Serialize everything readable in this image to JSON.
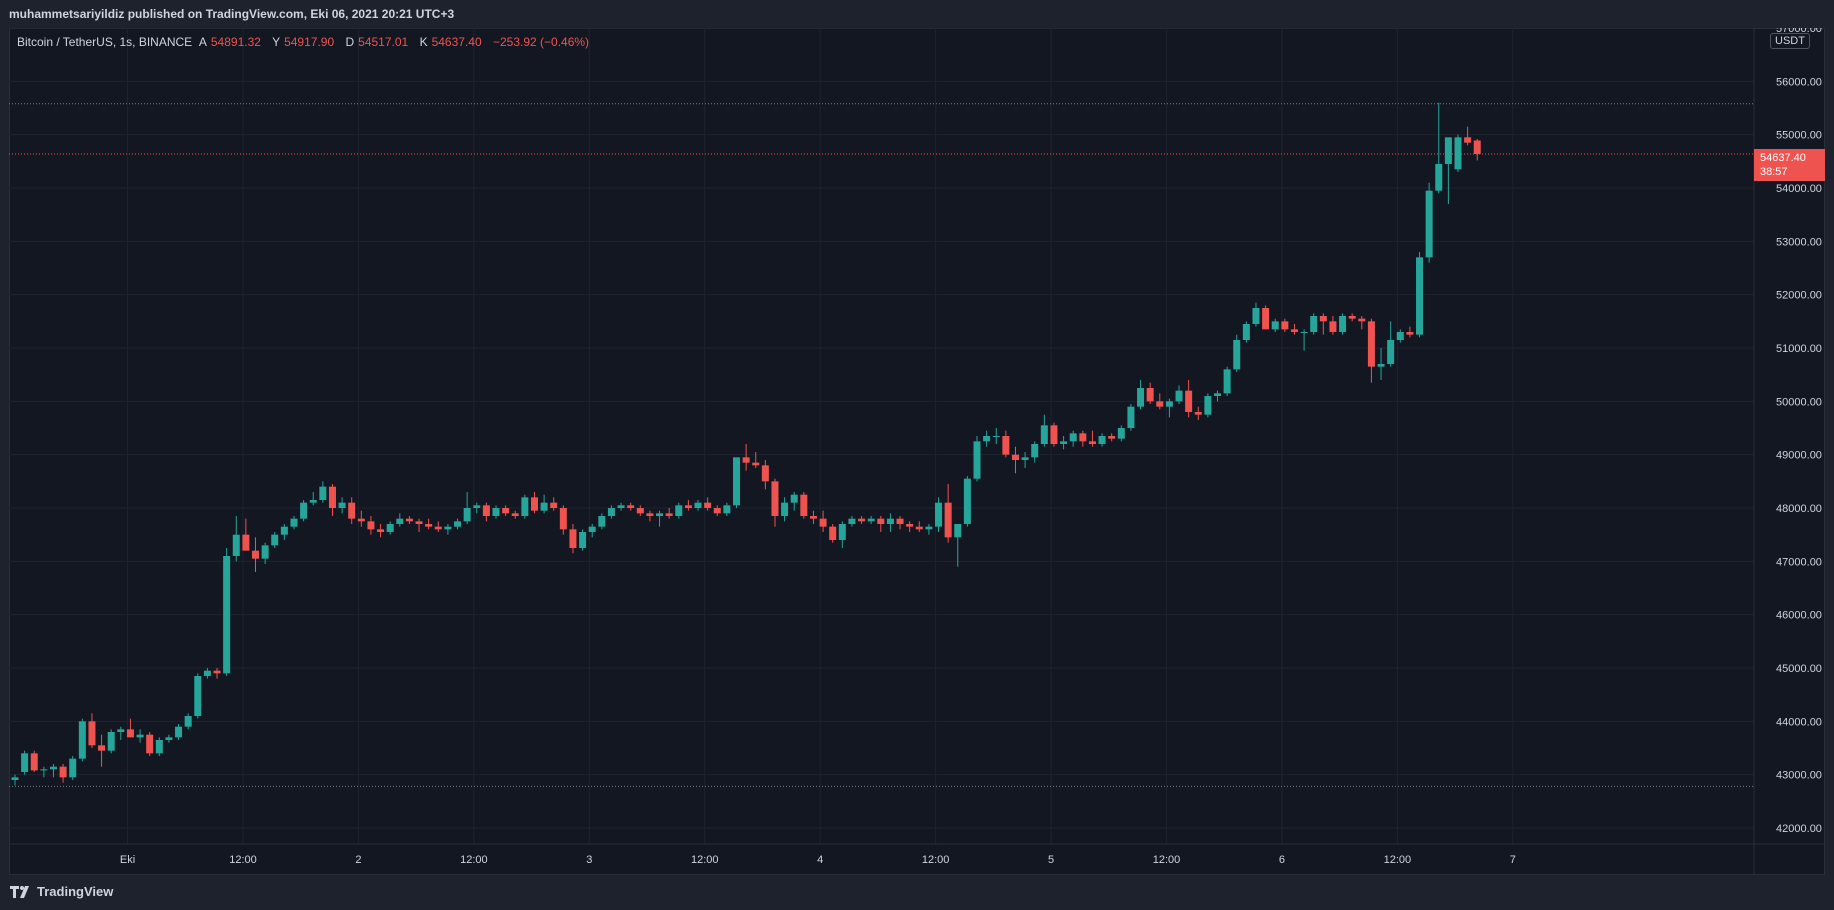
{
  "header": {
    "publish_text": "muhammetsariyildiz published on TradingView.com, Eki 06, 2021 20:21 UTC+3"
  },
  "legend": {
    "symbol": "Bitcoin / TetherUS, 1s, BINANCE",
    "open_label": "A",
    "open_value": "54891.32",
    "high_label": "Y",
    "high_value": "54917.90",
    "low_label": "D",
    "low_value": "54517.01",
    "close_label": "K",
    "close_value": "54637.40",
    "change": "−253.92 (−0.46%)"
  },
  "currency": "USDT",
  "last_price": {
    "value": "54637.40",
    "countdown": "38:57"
  },
  "footer": {
    "brand": "TradingView"
  },
  "colors": {
    "up": "#26a69a",
    "down": "#ef5350",
    "background": "#131722",
    "grid": "#1f2331",
    "text": "#d1d4dc"
  },
  "chart_data": {
    "type": "candlestick",
    "y_range": [
      41700,
      57000
    ],
    "y_ticks": [
      42000,
      43000,
      44000,
      45000,
      46000,
      47000,
      48000,
      49000,
      50000,
      51000,
      52000,
      53000,
      54000,
      55000,
      56000,
      57000
    ],
    "y_tick_labels": [
      "42000.00",
      "43000.00",
      "44000.00",
      "45000.00",
      "46000.00",
      "47000.00",
      "48000.00",
      "49000.00",
      "50000.00",
      "51000.00",
      "52000.00",
      "53000.00",
      "54000.00",
      "55000.00",
      "56000.00",
      "57000.00"
    ],
    "x_ticks": [
      {
        "label": "Eki",
        "index": 11.7
      },
      {
        "label": "12:00",
        "index": 23.7
      },
      {
        "label": "2",
        "index": 35.7
      },
      {
        "label": "12:00",
        "index": 47.7
      },
      {
        "label": "3",
        "index": 59.7
      },
      {
        "label": "12:00",
        "index": 71.7
      },
      {
        "label": "4",
        "index": 83.7
      },
      {
        "label": "12:00",
        "index": 95.7
      },
      {
        "label": "5",
        "index": 107.7
      },
      {
        "label": "12:00",
        "index": 119.7
      },
      {
        "label": "6",
        "index": 131.7
      },
      {
        "label": "12:00",
        "index": 143.7
      },
      {
        "label": "7",
        "index": 155.7
      }
    ],
    "horizontal_lines": [
      {
        "price": 55580,
        "color": "#787b86",
        "style": "dotted"
      },
      {
        "price": 54637.4,
        "color": "#ef5350",
        "style": "dotted"
      },
      {
        "price": 42780,
        "color": "#787b86",
        "style": "dotted"
      }
    ],
    "candles": [
      [
        42900,
        43000,
        42800,
        42950
      ],
      [
        43050,
        43450,
        43000,
        43400
      ],
      [
        43400,
        43450,
        43050,
        43080
      ],
      [
        43080,
        43150,
        42950,
        43100
      ],
      [
        43100,
        43200,
        42950,
        43150
      ],
      [
        43150,
        43200,
        42850,
        42950
      ],
      [
        42950,
        43350,
        42900,
        43300
      ],
      [
        43300,
        44050,
        43250,
        44000
      ],
      [
        44000,
        44150,
        43500,
        43550
      ],
      [
        43550,
        43750,
        43150,
        43450
      ],
      [
        43450,
        43850,
        43400,
        43800
      ],
      [
        43800,
        43900,
        43650,
        43850
      ],
      [
        43850,
        44050,
        43700,
        43700
      ],
      [
        43700,
        43850,
        43600,
        43750
      ],
      [
        43750,
        43800,
        43350,
        43400
      ],
      [
        43400,
        43700,
        43350,
        43650
      ],
      [
        43650,
        43750,
        43600,
        43700
      ],
      [
        43700,
        43950,
        43650,
        43900
      ],
      [
        43900,
        44150,
        43850,
        44100
      ],
      [
        44100,
        44900,
        44050,
        44850
      ],
      [
        44850,
        45000,
        44800,
        44950
      ],
      [
        44950,
        45000,
        44800,
        44900
      ],
      [
        44900,
        47250,
        44850,
        47100
      ],
      [
        47100,
        47850,
        47000,
        47500
      ],
      [
        47500,
        47800,
        47300,
        47200
      ],
      [
        47200,
        47450,
        46800,
        47050
      ],
      [
        47050,
        47350,
        46950,
        47300
      ],
      [
        47300,
        47550,
        47250,
        47500
      ],
      [
        47500,
        47700,
        47400,
        47650
      ],
      [
        47650,
        47850,
        47600,
        47800
      ],
      [
        47800,
        48150,
        47750,
        48100
      ],
      [
        48100,
        48300,
        48050,
        48150
      ],
      [
        48150,
        48500,
        48100,
        48400
      ],
      [
        48400,
        48450,
        47850,
        48000
      ],
      [
        48000,
        48200,
        47900,
        48100
      ],
      [
        48100,
        48200,
        47700,
        47800
      ],
      [
        47800,
        47950,
        47650,
        47750
      ],
      [
        47750,
        47850,
        47500,
        47600
      ],
      [
        47600,
        47700,
        47450,
        47550
      ],
      [
        47550,
        47750,
        47500,
        47700
      ],
      [
        47700,
        47900,
        47650,
        47800
      ],
      [
        47800,
        47850,
        47700,
        47750
      ],
      [
        47750,
        47800,
        47550,
        47700
      ],
      [
        47700,
        47800,
        47600,
        47650
      ],
      [
        47650,
        47750,
        47550,
        47600
      ],
      [
        47600,
        47700,
        47500,
        47650
      ],
      [
        47650,
        47800,
        47600,
        47750
      ],
      [
        47750,
        48300,
        47700,
        48000
      ],
      [
        48000,
        48100,
        47900,
        48050
      ],
      [
        48050,
        48100,
        47750,
        47850
      ],
      [
        47850,
        48050,
        47800,
        48000
      ],
      [
        48000,
        48050,
        47850,
        47900
      ],
      [
        47900,
        47950,
        47800,
        47850
      ],
      [
        47850,
        48250,
        47800,
        48200
      ],
      [
        48200,
        48300,
        47900,
        47950
      ],
      [
        47950,
        48250,
        47900,
        48100
      ],
      [
        48100,
        48200,
        47950,
        48000
      ],
      [
        48000,
        48050,
        47500,
        47600
      ],
      [
        47600,
        47700,
        47150,
        47250
      ],
      [
        47250,
        47600,
        47200,
        47550
      ],
      [
        47550,
        47700,
        47450,
        47650
      ],
      [
        47650,
        47900,
        47600,
        47850
      ],
      [
        47850,
        48050,
        47800,
        48000
      ],
      [
        48000,
        48100,
        47950,
        48050
      ],
      [
        48050,
        48100,
        47950,
        48000
      ],
      [
        48000,
        48050,
        47850,
        47900
      ],
      [
        47900,
        47950,
        47750,
        47850
      ],
      [
        47850,
        47950,
        47650,
        47900
      ],
      [
        47900,
        48000,
        47800,
        47850
      ],
      [
        47850,
        48100,
        47800,
        48050
      ],
      [
        48050,
        48150,
        47950,
        48000
      ],
      [
        48000,
        48150,
        47950,
        48100
      ],
      [
        48100,
        48200,
        47950,
        48000
      ],
      [
        48000,
        48050,
        47850,
        47900
      ],
      [
        47900,
        48100,
        47850,
        48050
      ],
      [
        48050,
        48900,
        48000,
        48950
      ],
      [
        48950,
        49200,
        48700,
        48850
      ],
      [
        48850,
        49050,
        48750,
        48800
      ],
      [
        48800,
        48900,
        48350,
        48500
      ],
      [
        48500,
        48550,
        47650,
        47850
      ],
      [
        47850,
        48200,
        47750,
        48100
      ],
      [
        48100,
        48300,
        47950,
        48250
      ],
      [
        48250,
        48300,
        47800,
        47850
      ],
      [
        47850,
        47950,
        47700,
        47800
      ],
      [
        47800,
        47950,
        47550,
        47650
      ],
      [
        47650,
        47700,
        47350,
        47400
      ],
      [
        47400,
        47750,
        47250,
        47700
      ],
      [
        47700,
        47850,
        47650,
        47800
      ],
      [
        47800,
        47850,
        47700,
        47750
      ],
      [
        47750,
        47850,
        47700,
        47800
      ],
      [
        47800,
        47850,
        47550,
        47700
      ],
      [
        47700,
        47900,
        47550,
        47800
      ],
      [
        47800,
        47850,
        47600,
        47700
      ],
      [
        47700,
        47750,
        47550,
        47650
      ],
      [
        47650,
        47750,
        47550,
        47600
      ],
      [
        47600,
        47700,
        47500,
        47650
      ],
      [
        47650,
        48200,
        47550,
        48100
      ],
      [
        48100,
        48450,
        47350,
        47450
      ],
      [
        47450,
        47700,
        46900,
        47700
      ],
      [
        47700,
        48600,
        47650,
        48550
      ],
      [
        48550,
        49350,
        48500,
        49250
      ],
      [
        49250,
        49450,
        49150,
        49350
      ],
      [
        49350,
        49500,
        49200,
        49350
      ],
      [
        49350,
        49450,
        48950,
        49000
      ],
      [
        49000,
        49150,
        48650,
        48900
      ],
      [
        48900,
        49050,
        48750,
        48950
      ],
      [
        48950,
        49250,
        48850,
        49200
      ],
      [
        49200,
        49750,
        49150,
        49550
      ],
      [
        49550,
        49600,
        49150,
        49200
      ],
      [
        49200,
        49350,
        49100,
        49250
      ],
      [
        49250,
        49450,
        49150,
        49400
      ],
      [
        49400,
        49450,
        49150,
        49250
      ],
      [
        49250,
        49450,
        49150,
        49200
      ],
      [
        49200,
        49400,
        49150,
        49350
      ],
      [
        49350,
        49400,
        49250,
        49300
      ],
      [
        49300,
        49550,
        49250,
        49500
      ],
      [
        49500,
        49950,
        49450,
        49900
      ],
      [
        49900,
        50400,
        49850,
        50250
      ],
      [
        50250,
        50350,
        49950,
        50000
      ],
      [
        50000,
        50150,
        49850,
        49900
      ],
      [
        49900,
        50050,
        49700,
        50000
      ],
      [
        50000,
        50300,
        49950,
        50200
      ],
      [
        50200,
        50400,
        49700,
        49800
      ],
      [
        49800,
        49900,
        49650,
        49750
      ],
      [
        49750,
        50150,
        49700,
        50100
      ],
      [
        50100,
        50200,
        50000,
        50150
      ],
      [
        50150,
        50650,
        50100,
        50600
      ],
      [
        50600,
        51250,
        50550,
        51150
      ],
      [
        51150,
        51500,
        51100,
        51450
      ],
      [
        51450,
        51850,
        51400,
        51750
      ],
      [
        51750,
        51800,
        51350,
        51350
      ],
      [
        51350,
        51550,
        51300,
        51500
      ],
      [
        51500,
        51550,
        51300,
        51350
      ],
      [
        51350,
        51450,
        51250,
        51300
      ],
      [
        51300,
        51350,
        50950,
        51300
      ],
      [
        51300,
        51650,
        51250,
        51600
      ],
      [
        51600,
        51650,
        51250,
        51500
      ],
      [
        51500,
        51600,
        51250,
        51300
      ],
      [
        51300,
        51650,
        51250,
        51600
      ],
      [
        51600,
        51650,
        51500,
        51550
      ],
      [
        51550,
        51600,
        51350,
        51500
      ],
      [
        51500,
        51550,
        50350,
        50650
      ],
      [
        50650,
        51000,
        50400,
        50700
      ],
      [
        50700,
        51500,
        50650,
        51150
      ],
      [
        51150,
        51350,
        51100,
        51300
      ],
      [
        51300,
        51400,
        51200,
        51250
      ],
      [
        51250,
        52800,
        51200,
        52700
      ],
      [
        52700,
        54100,
        52600,
        53950
      ],
      [
        53950,
        55600,
        53900,
        54450
      ],
      [
        54450,
        54850,
        53700,
        54950
      ],
      [
        54350,
        55000,
        54300,
        54950
      ],
      [
        54950,
        55150,
        54800,
        54850
      ],
      [
        54891.32,
        54917.9,
        54517.01,
        54637.4
      ]
    ]
  }
}
